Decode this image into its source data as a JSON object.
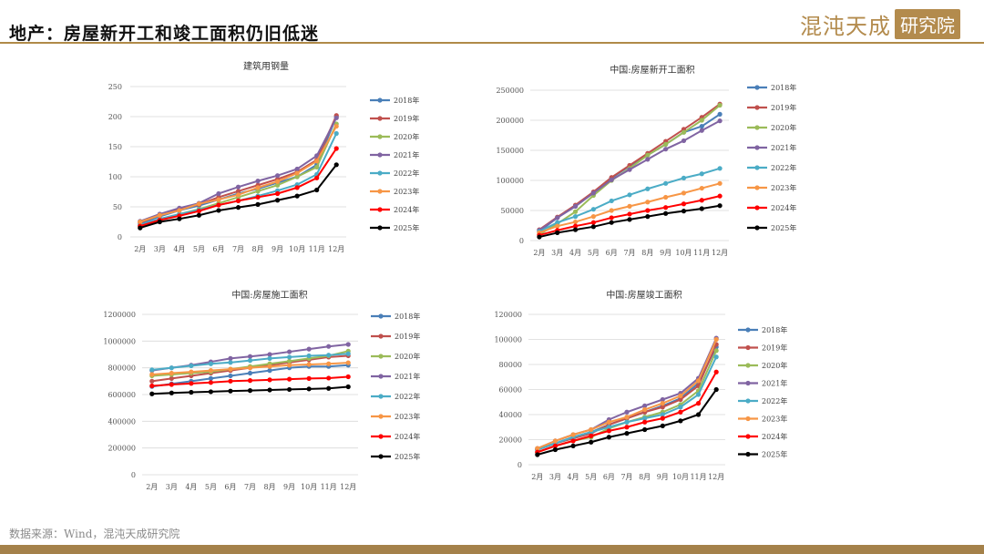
{
  "header": {
    "title": "地产：房屋新开工和竣工面积仍旧低迷"
  },
  "logo": {
    "text": "混沌天成",
    "box": "研究院"
  },
  "source": "数据来源：Wind，混沌天成研究院",
  "colors": {
    "2018年": "#4a7fb8",
    "2019年": "#c0504d",
    "2020年": "#9bbb59",
    "2021年": "#8064a2",
    "2022年": "#4bacc6",
    "2023年": "#f79646",
    "2024年": "#ff0000",
    "2025年": "#000000",
    "accent": "#b08a48"
  },
  "chart_data": [
    {
      "type": "line",
      "title": "建筑用钢量",
      "categories": [
        "2月",
        "3月",
        "4月",
        "5月",
        "6月",
        "7月",
        "8月",
        "9月",
        "10月",
        "11月",
        "12月"
      ],
      "ylim": [
        0,
        250
      ],
      "yticks": [
        0,
        50,
        100,
        150,
        200,
        250
      ],
      "grid": true,
      "legend": "right",
      "series": [
        {
          "name": "2018年",
          "values": [
            22,
            34,
            44,
            52,
            62,
            72,
            80,
            90,
            100,
            120,
            200
          ]
        },
        {
          "name": "2019年",
          "values": [
            24,
            36,
            46,
            54,
            66,
            76,
            86,
            96,
            108,
            128,
            202
          ]
        },
        {
          "name": "2020年",
          "values": [
            18,
            28,
            38,
            46,
            56,
            66,
            76,
            86,
            100,
            116,
            188
          ]
        },
        {
          "name": "2021年",
          "values": [
            26,
            38,
            48,
            56,
            72,
            83,
            93,
            102,
            113,
            135,
            198
          ]
        },
        {
          "name": "2022年",
          "values": [
            20,
            30,
            38,
            45,
            53,
            60,
            68,
            77,
            87,
            104,
            172
          ]
        },
        {
          "name": "2023年",
          "values": [
            25,
            36,
            44,
            55,
            62,
            70,
            82,
            92,
            106,
            126,
            184
          ]
        },
        {
          "name": "2024年",
          "values": [
            18,
            28,
            35,
            43,
            53,
            60,
            66,
            72,
            82,
            98,
            147
          ]
        },
        {
          "name": "2025年",
          "values": [
            15,
            25,
            30,
            36,
            44,
            49,
            54,
            61,
            68,
            78,
            120
          ]
        }
      ]
    },
    {
      "type": "line",
      "title": "中国:房屋新开工面积",
      "categories": [
        "2月",
        "3月",
        "4月",
        "5月",
        "6月",
        "7月",
        "8月",
        "9月",
        "10月",
        "11月",
        "12月"
      ],
      "ylim": [
        0,
        250000
      ],
      "yticks": [
        0,
        50000,
        100000,
        150000,
        200000,
        250000
      ],
      "grid": true,
      "legend": "right",
      "series": [
        {
          "name": "2018年",
          "values": [
            15000,
            38000,
            57000,
            80000,
            104000,
            124000,
            142000,
            160000,
            180000,
            190000,
            210000
          ]
        },
        {
          "name": "2019年",
          "values": [
            18000,
            39000,
            59000,
            81000,
            105000,
            125000,
            145000,
            165000,
            185000,
            205000,
            227000
          ]
        },
        {
          "name": "2020年",
          "values": [
            10000,
            28000,
            48000,
            75000,
            100000,
            120000,
            142000,
            160000,
            180000,
            200000,
            225000
          ]
        },
        {
          "name": "2021年",
          "values": [
            17000,
            38000,
            57000,
            79000,
            101000,
            118000,
            135000,
            152000,
            166000,
            183000,
            199000
          ]
        },
        {
          "name": "2022年",
          "values": [
            15000,
            30000,
            40000,
            52000,
            66000,
            76000,
            86000,
            95000,
            104000,
            111000,
            120000
          ]
        },
        {
          "name": "2023年",
          "values": [
            13000,
            24000,
            31000,
            40000,
            50000,
            57000,
            64000,
            72000,
            79000,
            87000,
            95000
          ]
        },
        {
          "name": "2024年",
          "values": [
            9000,
            17000,
            24000,
            30000,
            38000,
            44000,
            50000,
            55000,
            61000,
            67000,
            74000
          ]
        },
        {
          "name": "2025年",
          "values": [
            6000,
            13000,
            18000,
            23000,
            30000,
            35000,
            40000,
            45000,
            49000,
            53000,
            58000
          ]
        }
      ]
    },
    {
      "type": "line",
      "title": "中国:房屋施工面积",
      "categories": [
        "2月",
        "3月",
        "4月",
        "5月",
        "6月",
        "7月",
        "8月",
        "9月",
        "10月",
        "11月",
        "12月"
      ],
      "ylim": [
        0,
        1200000
      ],
      "yticks": [
        0,
        200000,
        400000,
        600000,
        800000,
        1000000,
        1200000
      ],
      "grid": true,
      "legend": "right",
      "series": [
        {
          "name": "2018年",
          "values": [
            660000,
            680000,
            700000,
            720000,
            740000,
            760000,
            780000,
            800000,
            810000,
            810000,
            820000
          ]
        },
        {
          "name": "2019年",
          "values": [
            700000,
            720000,
            740000,
            760000,
            780000,
            800000,
            820000,
            840000,
            860000,
            880000,
            890000
          ]
        },
        {
          "name": "2020年",
          "values": [
            740000,
            750000,
            760000,
            770000,
            790000,
            810000,
            830000,
            850000,
            870000,
            890000,
            925000
          ]
        },
        {
          "name": "2021年",
          "values": [
            780000,
            800000,
            820000,
            845000,
            870000,
            885000,
            900000,
            920000,
            940000,
            960000,
            975000
          ]
        },
        {
          "name": "2022年",
          "values": [
            785000,
            800000,
            815000,
            830000,
            840000,
            855000,
            870000,
            880000,
            890000,
            895000,
            905000
          ]
        },
        {
          "name": "2023年",
          "values": [
            750000,
            760000,
            770000,
            780000,
            790000,
            800000,
            810000,
            820000,
            825000,
            830000,
            838000
          ]
        },
        {
          "name": "2024年",
          "values": [
            665000,
            675000,
            683000,
            690000,
            700000,
            705000,
            710000,
            715000,
            720000,
            723000,
            733000
          ]
        },
        {
          "name": "2025年",
          "values": [
            605000,
            612000,
            617000,
            621000,
            626000,
            630000,
            634000,
            638000,
            642000,
            646000,
            658000
          ]
        }
      ]
    },
    {
      "type": "line",
      "title": "中国:房屋竣工面积",
      "categories": [
        "2月",
        "3月",
        "4月",
        "5月",
        "6月",
        "7月",
        "8月",
        "9月",
        "10月",
        "11月",
        "12月"
      ],
      "ylim": [
        0,
        120000
      ],
      "yticks": [
        0,
        20000,
        40000,
        60000,
        80000,
        100000,
        120000
      ],
      "grid": true,
      "legend": "right",
      "series": [
        {
          "name": "2018年",
          "values": [
            12000,
            17000,
            22000,
            26000,
            32000,
            37000,
            42000,
            47000,
            53000,
            65000,
            94000
          ]
        },
        {
          "name": "2019年",
          "values": [
            12000,
            17000,
            21000,
            25000,
            32000,
            37000,
            42000,
            46000,
            52000,
            63000,
            96000
          ]
        },
        {
          "name": "2020年",
          "values": [
            10000,
            15000,
            19000,
            22000,
            29000,
            34000,
            38000,
            42000,
            48000,
            59000,
            91000
          ]
        },
        {
          "name": "2021年",
          "values": [
            13000,
            19000,
            24000,
            28000,
            36000,
            42000,
            47000,
            52000,
            57000,
            69000,
            101000
          ]
        },
        {
          "name": "2022年",
          "values": [
            12000,
            17000,
            22000,
            26000,
            30000,
            34000,
            37000,
            40000,
            46000,
            56000,
            86000
          ]
        },
        {
          "name": "2023年",
          "values": [
            13000,
            19000,
            24000,
            28000,
            34000,
            38000,
            44000,
            49000,
            55000,
            67000,
            100000
          ]
        },
        {
          "name": "2024年",
          "values": [
            10000,
            15000,
            19000,
            23000,
            27000,
            30000,
            34000,
            37000,
            42000,
            49000,
            74000
          ]
        },
        {
          "name": "2025年",
          "values": [
            8000,
            12000,
            15000,
            18000,
            22000,
            25000,
            28000,
            31000,
            35000,
            40000,
            60000
          ]
        }
      ]
    }
  ]
}
